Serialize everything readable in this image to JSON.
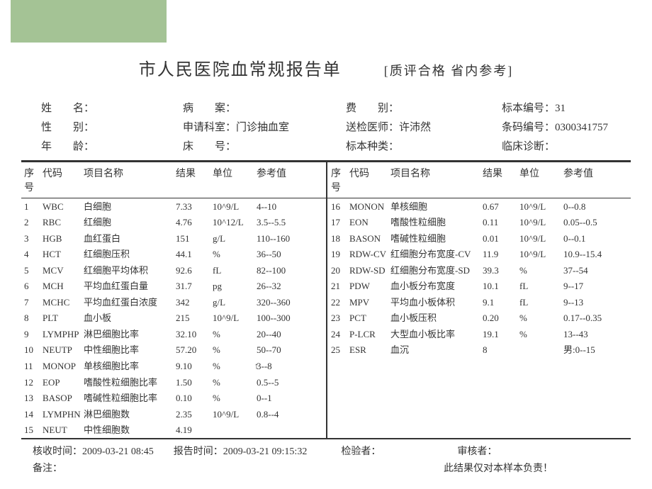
{
  "colors": {
    "green": "#a4c395",
    "text": "#333333",
    "bg": "#ffffff"
  },
  "title": "市人民医院血常规报告单",
  "title_note": "[质评合格 省内参考]",
  "patient": {
    "labels": {
      "name": "姓　　名：",
      "case": "病　　案：",
      "fee": "费　　别：",
      "specimen_no": "标本编号：",
      "sex": "性　　别：",
      "dept": "申请科室：",
      "doctor": "送检医师：",
      "barcode": "条码编号：",
      "age": "年　　龄：",
      "bed": "床　　号：",
      "specimen_type": "标本种类：",
      "diagnosis": "临床诊断："
    },
    "values": {
      "name": "",
      "case": "",
      "fee": "",
      "specimen_no": "31",
      "sex": "",
      "dept": "门诊抽血室",
      "doctor": "许沛然",
      "barcode": "0300341757",
      "age": "",
      "bed": "",
      "specimen_type": "",
      "diagnosis": ""
    }
  },
  "headers": {
    "idx": "序号",
    "code": "代码",
    "name": "项目名称",
    "result": "结果",
    "unit": "单位",
    "ref": "参考值"
  },
  "left": [
    {
      "idx": "1",
      "code": "WBC",
      "name": "白细胞",
      "result": "7.33",
      "unit": "10^9/L",
      "ref": "4--10"
    },
    {
      "idx": "2",
      "code": "RBC",
      "name": "红细胞",
      "result": "4.76",
      "unit": "10^12/L",
      "ref": "3.5--5.5"
    },
    {
      "idx": "3",
      "code": "HGB",
      "name": "血红蛋白",
      "result": "151",
      "unit": "g/L",
      "ref": "110--160"
    },
    {
      "idx": "4",
      "code": "HCT",
      "name": "红细胞压积",
      "result": "44.1",
      "unit": "%",
      "ref": "36--50"
    },
    {
      "idx": "5",
      "code": "MCV",
      "name": "红细胞平均体积",
      "result": "92.6",
      "unit": "fL",
      "ref": "82--100"
    },
    {
      "idx": "6",
      "code": "MCH",
      "name": "平均血红蛋白量",
      "result": "31.7",
      "unit": "pg",
      "ref": "26--32"
    },
    {
      "idx": "7",
      "code": "MCHC",
      "name": "平均血红蛋白浓度",
      "result": "342",
      "unit": "g/L",
      "ref": "320--360"
    },
    {
      "idx": "8",
      "code": "PLT",
      "name": "血小板",
      "result": "215",
      "unit": "10^9/L",
      "ref": "100--300"
    },
    {
      "idx": "9",
      "code": "LYMPHP",
      "name": "淋巴细胞比率",
      "result": "32.10",
      "unit": "%",
      "ref": "20--40"
    },
    {
      "idx": "10",
      "code": "NEUTP",
      "name": "中性细胞比率",
      "result": "57.20",
      "unit": "%",
      "ref": "50--70"
    },
    {
      "idx": "11",
      "code": "MONOP",
      "name": "单核细胞比率",
      "result": "9.10",
      "unit": "%",
      "ref": "3--8",
      "flag": "↑"
    },
    {
      "idx": "12",
      "code": "EOP",
      "name": "嗜酸性粒细胞比率",
      "result": "1.50",
      "unit": "%",
      "ref": "0.5--5"
    },
    {
      "idx": "13",
      "code": "BASOP",
      "name": "嗜碱性粒细胞比率",
      "result": "0.10",
      "unit": "%",
      "ref": "0--1"
    },
    {
      "idx": "14",
      "code": "LYMPHN",
      "name": "淋巴细胞数",
      "result": "2.35",
      "unit": "10^9/L",
      "ref": "0.8--4"
    },
    {
      "idx": "15",
      "code": "NEUT",
      "name": "中性细胞数",
      "result": "4.19",
      "unit": "",
      "ref": ""
    }
  ],
  "right": [
    {
      "idx": "16",
      "code": "MONON",
      "name": "单核细胞",
      "result": "0.67",
      "unit": "10^9/L",
      "ref": "0--0.8"
    },
    {
      "idx": "17",
      "code": "EON",
      "name": "嗜酸性粒细胞",
      "result": "0.11",
      "unit": "10^9/L",
      "ref": "0.05--0.5"
    },
    {
      "idx": "18",
      "code": "BASON",
      "name": "嗜碱性粒细胞",
      "result": "0.01",
      "unit": "10^9/L",
      "ref": "0--0.1"
    },
    {
      "idx": "19",
      "code": "RDW-CV",
      "name": "红细胞分布宽度-CV",
      "result": "11.9",
      "unit": "10^9/L",
      "ref": "10.9--15.4"
    },
    {
      "idx": "20",
      "code": "RDW-SD",
      "name": "红细胞分布宽度-SD",
      "result": "39.3",
      "unit": "%",
      "ref": "37--54"
    },
    {
      "idx": "21",
      "code": "PDW",
      "name": "血小板分布宽度",
      "result": "10.1",
      "unit": "fL",
      "ref": "9--17"
    },
    {
      "idx": "22",
      "code": "MPV",
      "name": "平均血小板体积",
      "result": "9.1",
      "unit": "fL",
      "ref": "9--13"
    },
    {
      "idx": "23",
      "code": "PCT",
      "name": "血小板压积",
      "result": "0.20",
      "unit": "%",
      "ref": "0.17--0.35"
    },
    {
      "idx": "24",
      "code": "P-LCR",
      "name": "大型血小板比率",
      "result": "19.1",
      "unit": "%",
      "ref": "13--43"
    },
    {
      "idx": "25",
      "code": "ESR",
      "name": "血沉",
      "result": "8",
      "unit": "",
      "ref": "男:0--15"
    }
  ],
  "footer": {
    "recv_label": "核收时间：",
    "recv_time": "2009-03-21 08:45",
    "report_label": "报告时间：",
    "report_time": "2009-03-21 09:15:32",
    "tester_label": "检验者：",
    "reviewer_label": "审核者：",
    "note_label": "备注：",
    "disclaimer": "此结果仅对本样本负责！"
  }
}
